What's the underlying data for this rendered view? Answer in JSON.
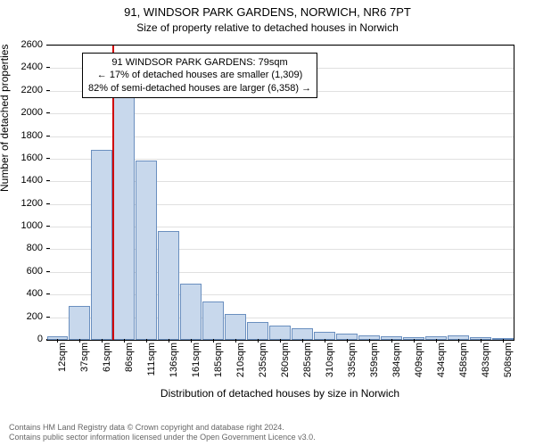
{
  "title": "91, WINDSOR PARK GARDENS, NORWICH, NR6 7PT",
  "subtitle": "Size of property relative to detached houses in Norwich",
  "y_label": "Number of detached properties",
  "x_label": "Distribution of detached houses by size in Norwich",
  "chart": {
    "type": "histogram",
    "background_color": "#ffffff",
    "bar_fill": "#c8d8ec",
    "bar_border": "#6a8fbf",
    "grid_color": "#e0e0e0",
    "marker_color": "#d00000",
    "ylim": [
      0,
      2600
    ],
    "y_ticks": [
      0,
      200,
      400,
      600,
      800,
      1000,
      1200,
      1400,
      1600,
      1800,
      2000,
      2200,
      2400,
      2600
    ],
    "x_tick_labels": [
      "12sqm",
      "37sqm",
      "61sqm",
      "86sqm",
      "111sqm",
      "136sqm",
      "161sqm",
      "185sqm",
      "210sqm",
      "235sqm",
      "260sqm",
      "285sqm",
      "310sqm",
      "335sqm",
      "359sqm",
      "384sqm",
      "409sqm",
      "434sqm",
      "458sqm",
      "483sqm",
      "508sqm"
    ],
    "values": [
      30,
      300,
      1680,
      2150,
      1580,
      960,
      500,
      340,
      230,
      160,
      130,
      100,
      70,
      55,
      40,
      30,
      25,
      30,
      40,
      20,
      15
    ],
    "marker_category_index": 3
  },
  "annotation": {
    "line1": "91 WINDSOR PARK GARDENS: 79sqm",
    "line2": "← 17% of detached houses are smaller (1,309)",
    "line3": "82% of semi-detached houses are larger (6,358) →"
  },
  "footer": {
    "line1": "Contains HM Land Registry data © Crown copyright and database right 2024.",
    "line2": "Contains public sector information licensed under the Open Government Licence v3.0."
  }
}
